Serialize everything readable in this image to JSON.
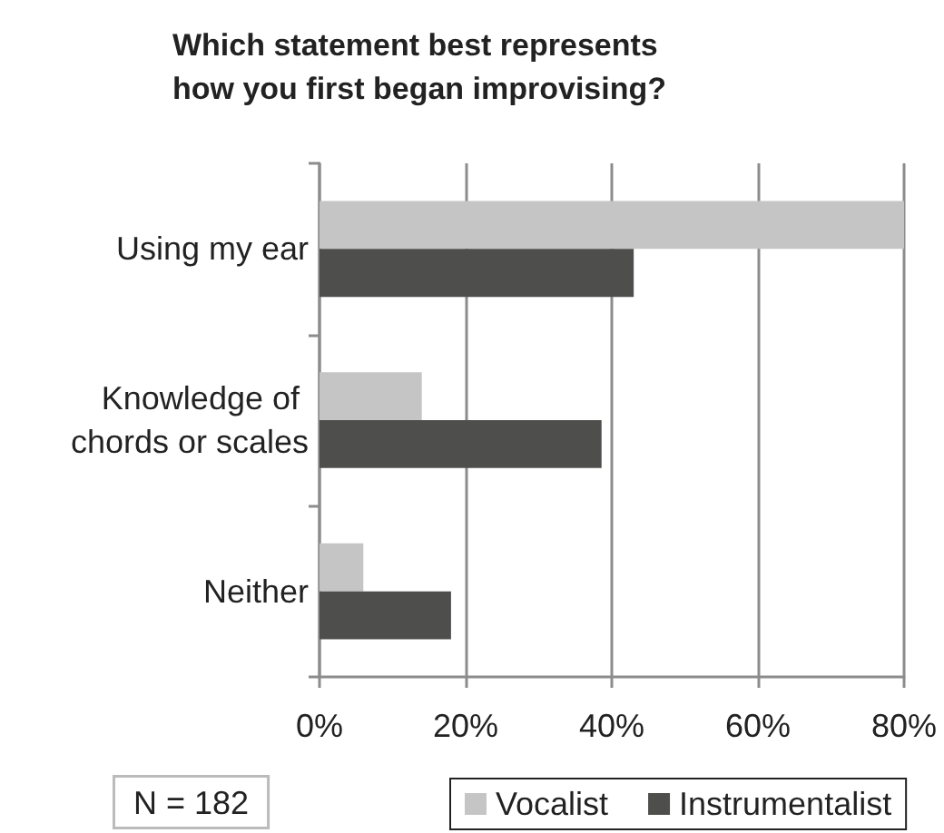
{
  "chart_data": {
    "type": "bar",
    "orientation": "horizontal",
    "title": "Which statement best represents how you first began improvising?",
    "categories": [
      "Using my ear",
      "Knowledge of chords or scales",
      "Neither"
    ],
    "series": [
      {
        "name": "Vocalist",
        "color": "#c4c5c4",
        "values": [
          80,
          14,
          6
        ]
      },
      {
        "name": "Instrumentalist",
        "color": "#4e4e4c",
        "values": [
          43,
          38.6,
          18
        ]
      }
    ],
    "xlim": [
      0,
      80
    ],
    "xticks": [
      {
        "value": 0,
        "label": "0%"
      },
      {
        "value": 20,
        "label": "20%"
      },
      {
        "value": 40,
        "label": "40%"
      },
      {
        "value": 60,
        "label": "60%"
      },
      {
        "value": 80,
        "label": "80%"
      }
    ],
    "grid": "x",
    "legend": "bottom",
    "annotations": [
      "N = 182"
    ]
  }
}
